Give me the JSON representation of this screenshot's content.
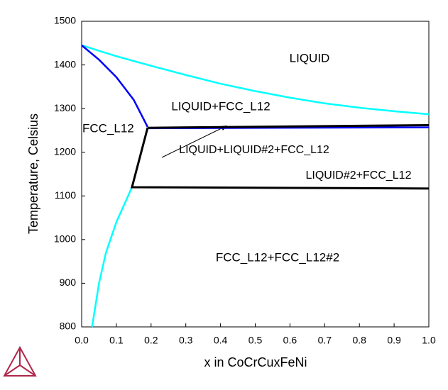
{
  "chart_data": {
    "type": "line",
    "xlabel": "x in CoCrCuxFeNi",
    "ylabel": "Temperature, Celsius",
    "xlim": [
      0,
      1
    ],
    "ylim": [
      800,
      1500
    ],
    "xticks": [
      {
        "value": 0,
        "label": "0.0"
      },
      0.1,
      0.2,
      0.3,
      0.4,
      0.5,
      0.6,
      0.7,
      0.8,
      0.9,
      {
        "value": 1,
        "label": "1.0"
      }
    ],
    "yticks": [
      800,
      900,
      1000,
      1100,
      1200,
      1300,
      1400,
      1500
    ],
    "annotations": [
      "LIQUID",
      "LIQUID+FCC_L12",
      "FCC_L12",
      "LIQUID+LIQUID#2+FCC_L12",
      "LIQUID#2+FCC_L12",
      "FCC_L12+FCC_L12#2"
    ],
    "series": [
      {
        "color": "#00ffff",
        "x": [
          0,
          0.1,
          0.2,
          0.3,
          0.4,
          0.5,
          0.6,
          0.7,
          0.8,
          0.9,
          1
        ],
        "values": [
          1445,
          1420,
          1398,
          1377,
          1357,
          1340,
          1325,
          1312,
          1302,
          1294,
          1287
        ]
      },
      {
        "color": "#0000ff",
        "x": [
          0,
          0.05,
          0.1,
          0.15,
          0.19
        ],
        "values": [
          1445,
          1412,
          1372,
          1320,
          1258
        ]
      },
      {
        "color": "#0000ff",
        "x": [
          0.19,
          1
        ],
        "values": [
          1255,
          1257
        ]
      },
      {
        "color": "#00ffff",
        "x": [
          0.03,
          0.05,
          0.07,
          0.1,
          0.145
        ],
        "values": [
          800,
          900,
          970,
          1040,
          1120
        ]
      },
      {
        "color": "#000000",
        "x": [
          0.19,
          1
        ],
        "values": [
          1256,
          1262
        ]
      },
      {
        "color": "#000000",
        "x": [
          0.19,
          0.145,
          1
        ],
        "values": [
          1256,
          1120,
          1117
        ]
      }
    ]
  }
}
